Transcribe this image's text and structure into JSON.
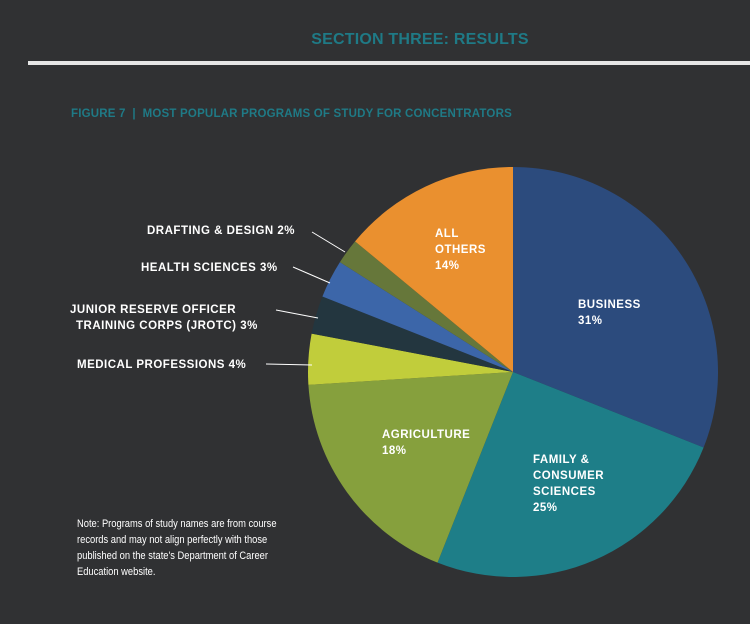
{
  "header": {
    "section_title": "SECTION THREE: RESULTS"
  },
  "chart_data": {
    "type": "pie",
    "title": "FIGURE 7  |  MOST POPULAR PROGRAMS OF STUDY FOR CONCENTRATORS",
    "slices": [
      {
        "name": "BUSINESS",
        "value": 31,
        "label": "31%",
        "color": "#2c4b7d"
      },
      {
        "name": "FAMILY & CONSUMER SCIENCES",
        "value": 25,
        "label": "25%",
        "color": "#1e7e88"
      },
      {
        "name": "AGRICULTURE",
        "value": 18,
        "label": "18%",
        "color": "#86a03d"
      },
      {
        "name": "MEDICAL PROFESSIONS",
        "value": 4,
        "label": "4%",
        "color": "#c1cd3b"
      },
      {
        "name": "JUNIOR RESERVE OFFICER TRAINING CORPS (JROTC)",
        "value": 3,
        "label": "3%",
        "color": "#23363f"
      },
      {
        "name": "HEALTH SCIENCES",
        "value": 3,
        "label": "3%",
        "color": "#3c66a9"
      },
      {
        "name": "DRAFTING & DESIGN",
        "value": 2,
        "label": "2%",
        "color": "#66773a"
      },
      {
        "name": "ALL OTHERS",
        "value": 14,
        "label": "14%",
        "color": "#ea902f"
      }
    ]
  },
  "labels": {
    "business": [
      "BUSINESS",
      "31%"
    ],
    "family": [
      "FAMILY &",
      "CONSUMER",
      "SCIENCES",
      "25%"
    ],
    "agriculture": [
      "AGRICULTURE",
      "18%"
    ],
    "others": [
      "ALL",
      "OTHERS",
      "14%"
    ],
    "medical": "MEDICAL PROFESSIONS 4%",
    "jrotc": [
      "JUNIOR RESERVE OFFICER",
      "TRAINING CORPS (JROTC) 3%"
    ],
    "health": "HEALTH SCIENCES 3%",
    "drafting": "DRAFTING & DESIGN 2%"
  },
  "note": [
    "Note:  Programs of study names are from course",
    "records and may not align perfectly with those",
    "published on the state's Department of Career",
    "Education website."
  ]
}
